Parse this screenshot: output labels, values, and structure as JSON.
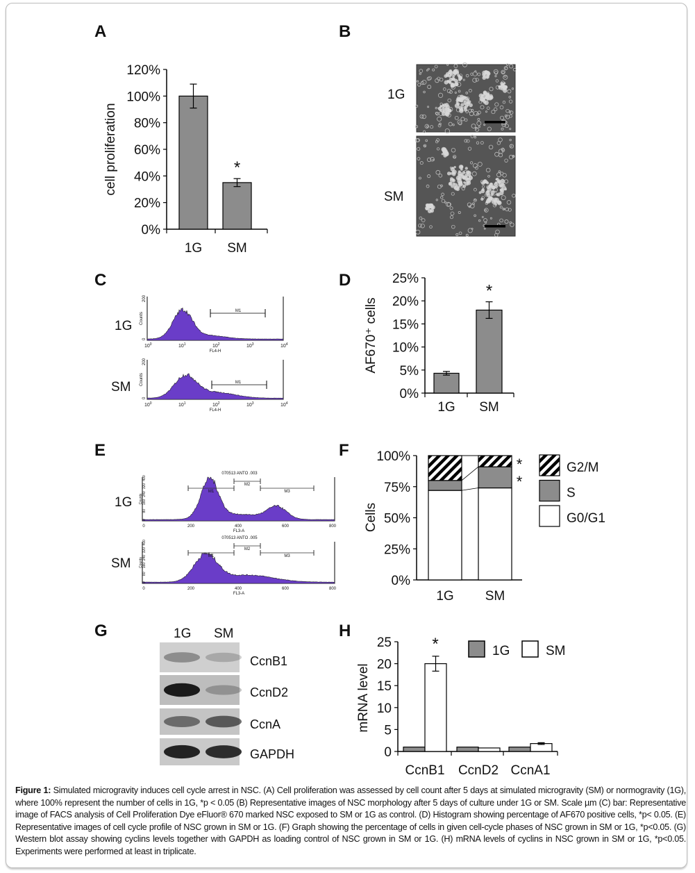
{
  "panel_labels": {
    "A": "A",
    "B": "B",
    "C": "C",
    "D": "D",
    "E": "E",
    "F": "F",
    "G": "G",
    "H": "H"
  },
  "chart_data": [
    {
      "panel": "A",
      "type": "bar",
      "categories": [
        "1G",
        "SM"
      ],
      "values": [
        100,
        35
      ],
      "errors": [
        9,
        3
      ],
      "significance": [
        "",
        "*"
      ],
      "ylabel": "cell proliferation",
      "ylim": [
        0,
        120
      ],
      "yticks": [
        "0%",
        "20%",
        "40%",
        "60%",
        "80%",
        "100%",
        "120%"
      ],
      "bar_color": "#8c8c8c"
    },
    {
      "panel": "D",
      "type": "bar",
      "categories": [
        "1G",
        "SM"
      ],
      "values": [
        4.3,
        18
      ],
      "errors": [
        0.4,
        1.8
      ],
      "significance": [
        "",
        "*"
      ],
      "ylabel": "AF670⁺ cells",
      "ylim": [
        0,
        25
      ],
      "yticks": [
        "0%",
        "5%",
        "10%",
        "15%",
        "20%",
        "25%"
      ],
      "bar_color": "#8c8c8c"
    },
    {
      "panel": "F",
      "type": "bar",
      "stacked": true,
      "categories": [
        "1G",
        "SM"
      ],
      "series": [
        {
          "name": "G0/G1",
          "values": [
            72,
            74
          ],
          "color": "#ffffff"
        },
        {
          "name": "S",
          "values": [
            8,
            17
          ],
          "color": "#8c8c8c"
        },
        {
          "name": "G2/M",
          "values": [
            20,
            9
          ],
          "pattern": "diagonal-hatch"
        }
      ],
      "significance": [
        "*",
        "*"
      ],
      "ylabel": "Cells",
      "ylim": [
        0,
        100
      ],
      "yticks": [
        "0%",
        "25%",
        "50%",
        "75%",
        "100%"
      ],
      "legend": "right"
    },
    {
      "panel": "H",
      "type": "bar",
      "categories": [
        "CcnB1",
        "CcnD2",
        "CcnA1"
      ],
      "series": [
        {
          "name": "1G",
          "values": [
            1,
            1,
            1
          ],
          "errors": [
            0,
            0,
            0
          ],
          "color": "#8c8c8c"
        },
        {
          "name": "SM",
          "values": [
            20,
            0.8,
            1.8
          ],
          "errors": [
            1.7,
            0,
            0.2
          ],
          "color": "#ffffff"
        }
      ],
      "significance": [
        "*",
        "",
        ""
      ],
      "ylabel": "mRNA level",
      "ylim": [
        0,
        25
      ],
      "yticks": [
        "0",
        "5",
        "10",
        "15",
        "20",
        "25"
      ],
      "legend": "top-right"
    }
  ],
  "panelB": {
    "row_labels": [
      "1G",
      "SM"
    ]
  },
  "panelC": {
    "row_labels": [
      "1G",
      "SM"
    ],
    "ylabel": "Counts",
    "yticks": [
      "0",
      "200"
    ],
    "xlabel": "FL4-H",
    "xticks": [
      "10",
      "10",
      "10",
      "10",
      "10"
    ],
    "xexp": [
      "0",
      "1",
      "2",
      "3",
      "4"
    ],
    "gate": "M1",
    "fill": "#6a3dc8"
  },
  "panelE": {
    "row_labels": [
      "1G",
      "SM"
    ],
    "titles": [
      "070513 ANTO .003",
      "070513 ANTO .005"
    ],
    "ylabel": "Counts",
    "yticks": [
      "0",
      "80",
      "160",
      "240",
      "320",
      "400"
    ],
    "xlabel": "FL3-A",
    "xticks": [
      "0",
      "200",
      "400",
      "600",
      "800"
    ],
    "gates": [
      "M1",
      "M2",
      "M3"
    ]
  },
  "panelG": {
    "lanes": [
      "1G",
      "SM"
    ],
    "bands": [
      "CcnB1",
      "CcnD2",
      "CcnA",
      "GAPDH"
    ]
  },
  "caption": {
    "label": "Figure 1:",
    "text": " Simulated microgravity induces cell cycle arrest in NSC. (A) Cell proliferation was assessed by cell count after 5 days at simulated microgravity (SM) or normogravity (1G), where 100% represent the number of cells in 1G, *p < 0.05 (B) Representative images of NSC morphology after 5 days of culture under 1G or SM. Scale µm (C) bar: Representative image of FACS analysis of Cell Proliferation Dye eFluor® 670 marked NSC exposed to SM or 1G as control. (D) Histogram showing percentage of AF670 positive cells, *p< 0.05. (E) Representative images of cell cycle profile of NSC grown in SM or 1G. (F) Graph showing the percentage of cells in given cell-cycle phases of NSC grown in SM or 1G, *p<0.05. (G) Western blot assay showing cyclins levels together with GAPDH as loading control of NSC grown in SM or 1G. (H) mRNA levels of cyclins in NSC grown in SM or 1G, *p<0.05. Experiments were performed at least in triplicate."
  }
}
